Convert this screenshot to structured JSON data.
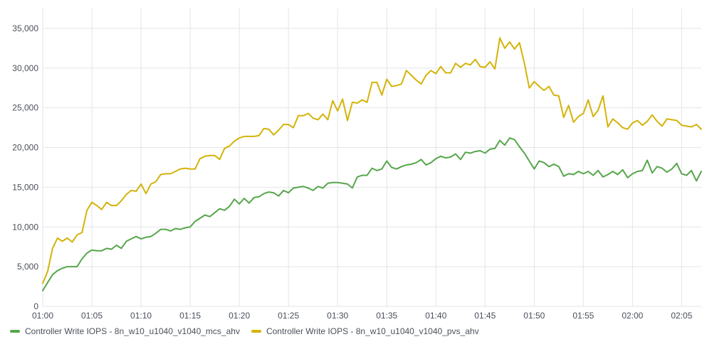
{
  "chart_data": {
    "type": "line",
    "title": "",
    "xlabel": "",
    "ylabel": "",
    "ylim": [
      0,
      37500
    ],
    "xlim": [
      "01:00",
      "02:07"
    ],
    "grid": true,
    "legend_position": "bottom-left",
    "x_ticks": [
      "01:00",
      "01:05",
      "01:10",
      "01:15",
      "01:20",
      "01:25",
      "01:30",
      "01:35",
      "01:40",
      "01:45",
      "01:50",
      "01:55",
      "02:00",
      "02:05"
    ],
    "y_ticks": [
      "0",
      "5,000",
      "10,000",
      "15,000",
      "20,000",
      "25,000",
      "30,000",
      "35,000"
    ],
    "x_start_minute": 0,
    "x_step_minutes": 0.5,
    "series": [
      {
        "name": "Controller Write IOPS - 8n_w10_u1040_v1040_mcs_ahv",
        "color": "#56a64b",
        "values": [
          2000,
          3000,
          4000,
          4500,
          4800,
          5000,
          5000,
          5000,
          6000,
          6700,
          7100,
          7000,
          7000,
          7300,
          7200,
          7700,
          7300,
          8200,
          8500,
          8800,
          8500,
          8700,
          8800,
          9200,
          9700,
          9700,
          9500,
          9800,
          9700,
          9900,
          10000,
          10700,
          11100,
          11500,
          11300,
          11800,
          12300,
          12100,
          12600,
          13500,
          12900,
          13600,
          13000,
          13700,
          13800,
          14200,
          14400,
          14300,
          13900,
          14600,
          14300,
          14900,
          15000,
          15100,
          14900,
          14600,
          15100,
          14900,
          15500,
          15600,
          15600,
          15500,
          15400,
          14900,
          16300,
          16500,
          16500,
          17400,
          17100,
          17300,
          18300,
          17500,
          17300,
          17600,
          17800,
          17900,
          18100,
          18500,
          17800,
          18100,
          18600,
          18900,
          18700,
          18800,
          19200,
          18500,
          19400,
          19300,
          19500,
          19600,
          19300,
          19800,
          19900,
          20900,
          20300,
          21200,
          21000,
          20100,
          19300,
          18300,
          17300,
          18300,
          18100,
          17600,
          17900,
          17600,
          16400,
          16700,
          16600,
          17000,
          16700,
          17000,
          16500,
          17100,
          16300,
          16600,
          17000,
          16600,
          17200,
          16200,
          16700,
          17000,
          17100,
          18400,
          16800,
          17600,
          17400,
          16900,
          17300,
          18000,
          16700,
          16500,
          17100,
          15800,
          17000
        ]
      },
      {
        "name": "Controller Write IOPS - 8n_w10_u1040_v1040_pvs_ahv",
        "color": "#d4b30a",
        "values": [
          2900,
          4400,
          7300,
          8600,
          8200,
          8600,
          8100,
          9000,
          9300,
          12100,
          13100,
          12700,
          12200,
          13100,
          12700,
          12700,
          13300,
          14100,
          14600,
          14500,
          15400,
          14200,
          15400,
          15700,
          16600,
          16700,
          16700,
          17000,
          17300,
          17400,
          17300,
          17300,
          18600,
          18900,
          19000,
          19000,
          18500,
          19900,
          20200,
          20800,
          21200,
          21400,
          21400,
          21400,
          21500,
          22400,
          22300,
          21600,
          22200,
          22900,
          22900,
          22500,
          24000,
          24000,
          24300,
          23700,
          23500,
          24200,
          23500,
          25900,
          24600,
          26100,
          23400,
          25700,
          25600,
          26000,
          25700,
          28200,
          28200,
          26600,
          28600,
          27700,
          27800,
          28000,
          29700,
          29100,
          28500,
          28000,
          29100,
          29700,
          29300,
          30200,
          29400,
          29400,
          30600,
          30100,
          30600,
          30400,
          31100,
          30200,
          30100,
          30800,
          29900,
          33800,
          32500,
          33300,
          32400,
          33200,
          30600,
          27500,
          28300,
          27700,
          27200,
          27700,
          26600,
          26500,
          23800,
          25300,
          23200,
          23900,
          24300,
          26000,
          23900,
          24700,
          26500,
          22600,
          23600,
          23100,
          22500,
          22300,
          23100,
          23400,
          22800,
          23300,
          24100,
          23300,
          22700,
          23600,
          23500,
          23400,
          22800,
          22700,
          22600,
          22900,
          22300
        ]
      }
    ]
  }
}
